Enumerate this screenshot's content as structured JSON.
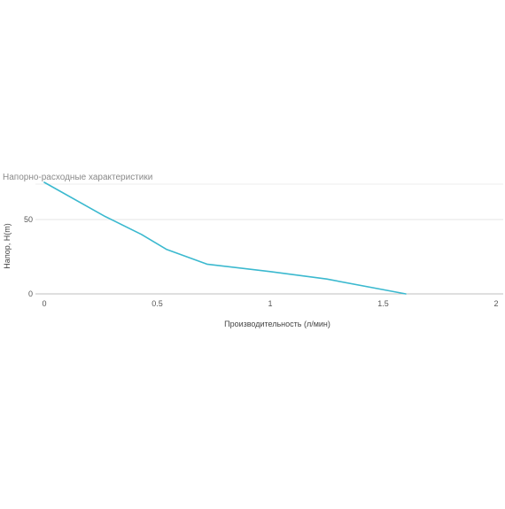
{
  "chart_data": {
    "type": "line",
    "title": "Напорно-расходные характеристики",
    "xlabel": "Производительность (л/мин)",
    "ylabel": "Напор, H(m)",
    "xlim": [
      0,
      2
    ],
    "ylim": [
      0,
      75
    ],
    "x_ticks": [
      "0",
      "0.5",
      "1",
      "1.5",
      "2"
    ],
    "y_ticks": [
      "0",
      "50"
    ],
    "grid": true,
    "legend": "none",
    "series": [
      {
        "color": "#3bb9cf",
        "points": [
          {
            "x": 0,
            "y": 75
          },
          {
            "x": 0.27,
            "y": 52
          },
          {
            "x": 0.43,
            "y": 40
          },
          {
            "x": 0.54,
            "y": 30
          },
          {
            "x": 0.72,
            "y": 20
          },
          {
            "x": 1.0,
            "y": 15
          },
          {
            "x": 1.25,
            "y": 10
          },
          {
            "x": 1.6,
            "y": 0
          }
        ]
      }
    ]
  }
}
